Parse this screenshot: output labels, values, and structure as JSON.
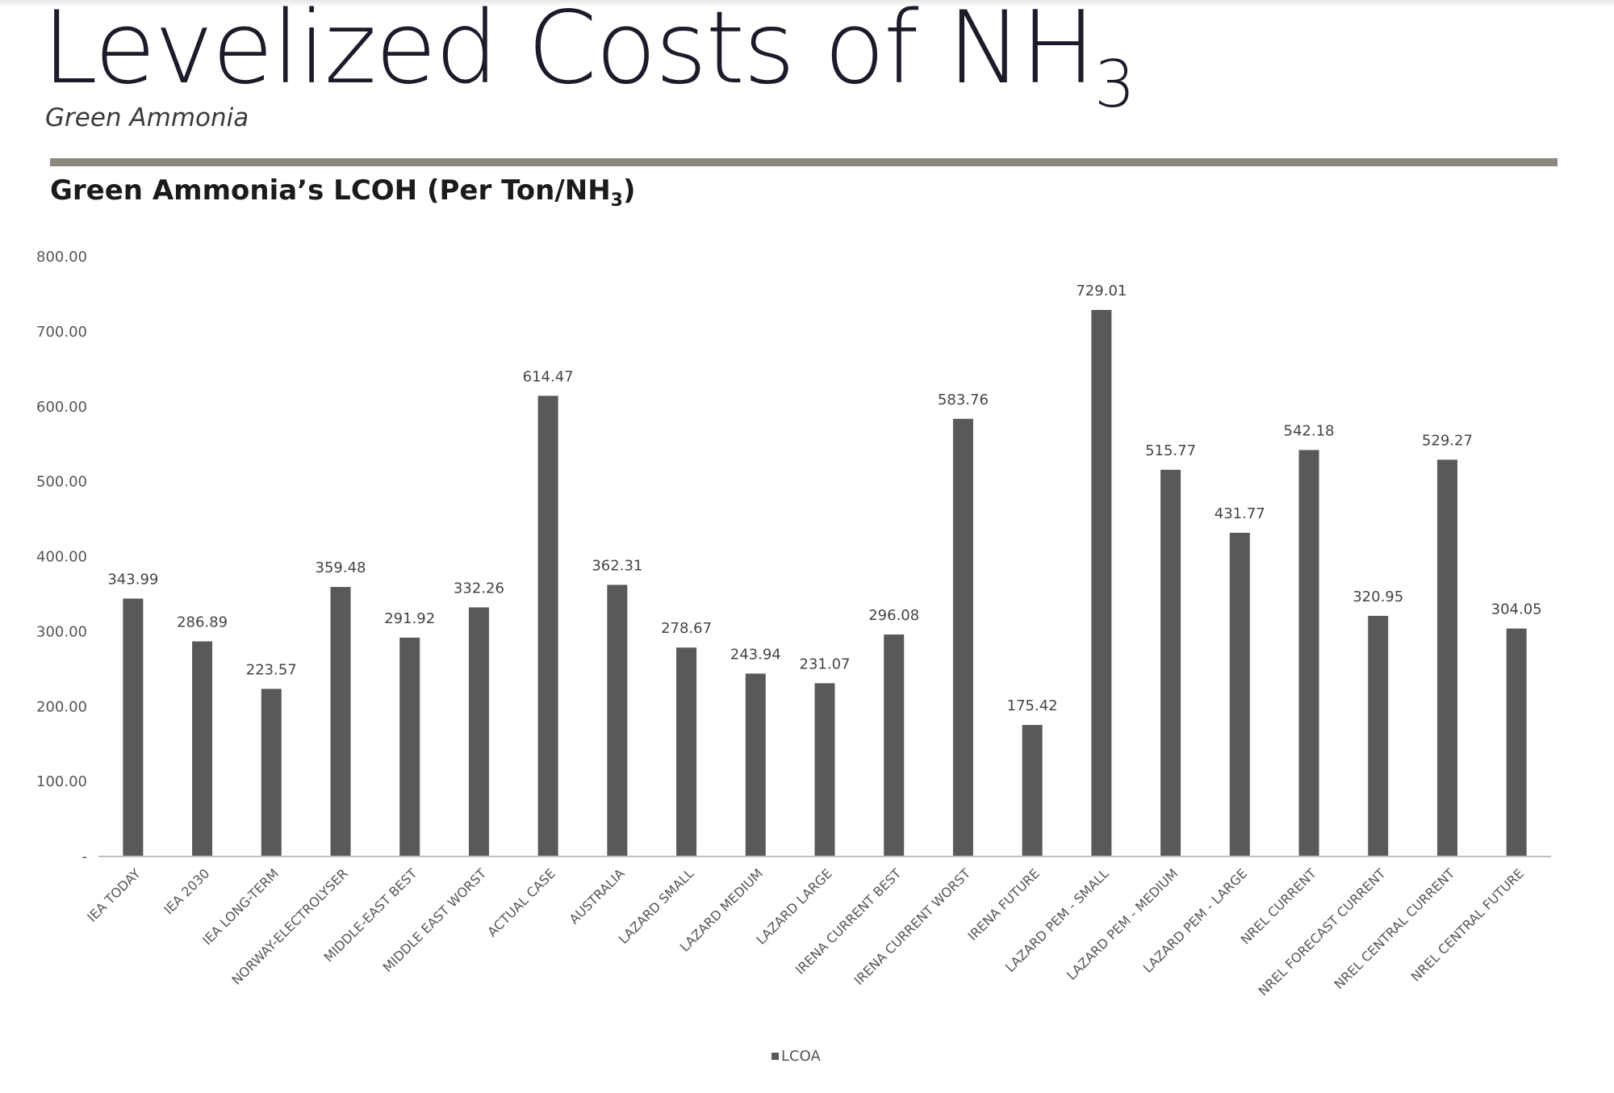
{
  "header": {
    "title_main": "Levelized Costs of NH",
    "title_sub": "3",
    "subtitle": "Green Ammonia"
  },
  "chart_heading": {
    "text_main": "Green Ammonia’s LCOH (Per Ton/NH",
    "text_sub": "3",
    "text_end": ")"
  },
  "colors": {
    "bar": "#595959",
    "axis": "#bfbfbf",
    "divider": "#8e8780"
  },
  "chart_data": {
    "type": "bar",
    "categories": [
      "IEA TODAY",
      "IEA 2030",
      "IEA LONG-TERM",
      "NORWAY-ELECTROLYSER",
      "MIDDLE-EAST BEST",
      "MIDDLE EAST WORST",
      "ACTUAL CASE",
      "AUSTRALIA",
      "LAZARD SMALL",
      "LAZARD MEDIUM",
      "LAZARD LARGE",
      "IRENA CURRENT BEST",
      "IRENA CURRENT WORST",
      "IRENA FUTURE",
      "LAZARD PEM - SMALL",
      "LAZARD PEM - MEDIUM",
      "LAZARD PEM - LARGE",
      "NREL CURRENT",
      "NREL FORECAST CURRENT",
      "NREL CENTRAL CURRENT",
      "NREL CENTRAL FUTURE"
    ],
    "series": [
      {
        "name": "LCOA",
        "values": [
          343.99,
          286.89,
          223.57,
          359.48,
          291.92,
          332.26,
          614.47,
          362.31,
          278.67,
          243.94,
          231.07,
          296.08,
          583.76,
          175.42,
          729.01,
          515.77,
          431.77,
          542.18,
          320.95,
          529.27,
          304.05
        ],
        "labels": [
          "343.99",
          "286.89",
          "223.57",
          "359.48",
          "291.92",
          "332.26",
          "614.47",
          "362.31",
          "278.67",
          "243.94",
          "231.07",
          "296.08",
          "583.76",
          "175.42",
          "729.01",
          "515.77",
          "431.77",
          "542.18",
          "320.95",
          "529.27",
          "304.05"
        ]
      }
    ],
    "yticks": [
      {
        "value": 0,
        "label": "-"
      },
      {
        "value": 100,
        "label": "100.00"
      },
      {
        "value": 200,
        "label": "200.00"
      },
      {
        "value": 300,
        "label": "300.00"
      },
      {
        "value": 400,
        "label": "400.00"
      },
      {
        "value": 500,
        "label": "500.00"
      },
      {
        "value": 600,
        "label": "600.00"
      },
      {
        "value": 700,
        "label": "700.00"
      },
      {
        "value": 800,
        "label": "800.00"
      }
    ],
    "ylim": [
      0,
      800
    ],
    "grid": false,
    "legend_position": "bottom-center",
    "legend_label": "LCOA"
  }
}
